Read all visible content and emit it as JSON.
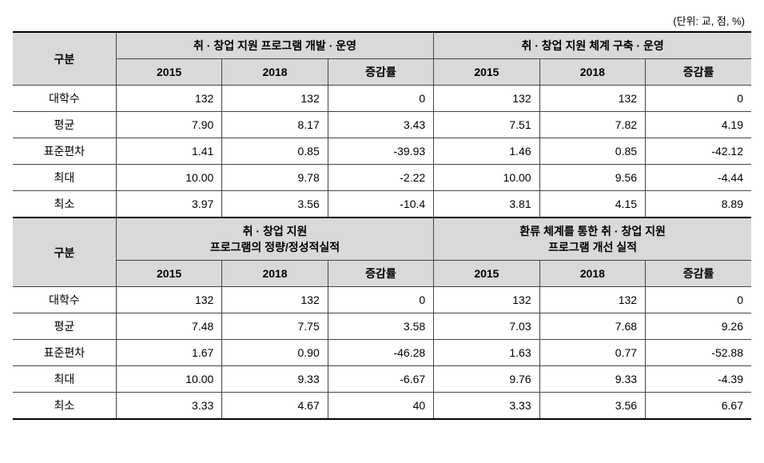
{
  "unit_note": "(단위: 교, 점, %)",
  "labels": {
    "gubun": "구분",
    "y2015": "2015",
    "y2018": "2018",
    "rate": "증감률",
    "rows": [
      "대학수",
      "평균",
      "표준편차",
      "최대",
      "최소"
    ]
  },
  "section1": {
    "left_title": "취 · 창업 지원 프로그램 개발 · 운영",
    "right_title": "취 · 창업 지원 체계 구축 · 운영",
    "rows": [
      {
        "l2015": "132",
        "l2018": "132",
        "lrate": "0",
        "r2015": "132",
        "r2018": "132",
        "rrate": "0"
      },
      {
        "l2015": "7.90",
        "l2018": "8.17",
        "lrate": "3.43",
        "r2015": "7.51",
        "r2018": "7.82",
        "rrate": "4.19"
      },
      {
        "l2015": "1.41",
        "l2018": "0.85",
        "lrate": "-39.93",
        "r2015": "1.46",
        "r2018": "0.85",
        "rrate": "-42.12"
      },
      {
        "l2015": "10.00",
        "l2018": "9.78",
        "lrate": "-2.22",
        "r2015": "10.00",
        "r2018": "9.56",
        "rrate": "-4.44"
      },
      {
        "l2015": "3.97",
        "l2018": "3.56",
        "lrate": "-10.4",
        "r2015": "3.81",
        "r2018": "4.15",
        "rrate": "8.89"
      }
    ]
  },
  "section2": {
    "left_title_line1": "취 · 창업 지원",
    "left_title_line2": "프로그램의 정량/정성적실적",
    "right_title_line1": "환류 체계를 통한 취 · 창업 지원",
    "right_title_line2": "프로그램 개선 실적",
    "rows": [
      {
        "l2015": "132",
        "l2018": "132",
        "lrate": "0",
        "r2015": "132",
        "r2018": "132",
        "rrate": "0"
      },
      {
        "l2015": "7.48",
        "l2018": "7.75",
        "lrate": "3.58",
        "r2015": "7.03",
        "r2018": "7.68",
        "rrate": "9.26"
      },
      {
        "l2015": "1.67",
        "l2018": "0.90",
        "lrate": "-46.28",
        "r2015": "1.63",
        "r2018": "0.77",
        "rrate": "-52.88"
      },
      {
        "l2015": "10.00",
        "l2018": "9.33",
        "lrate": "-6.67",
        "r2015": "9.76",
        "r2018": "9.33",
        "rrate": "-4.39"
      },
      {
        "l2015": "3.33",
        "l2018": "4.67",
        "lrate": "40",
        "r2015": "3.33",
        "r2018": "3.56",
        "rrate": "6.67"
      }
    ]
  },
  "style": {
    "header_bg": "#d9d9d9",
    "border_color": "#444444",
    "thick_border_color": "#000000",
    "font_size_pt": 14,
    "unit_font_size_pt": 13,
    "text_color": "#000000",
    "background_color": "#ffffff",
    "col_label_width_pct": 14,
    "num_align": "right",
    "label_align": "center"
  }
}
